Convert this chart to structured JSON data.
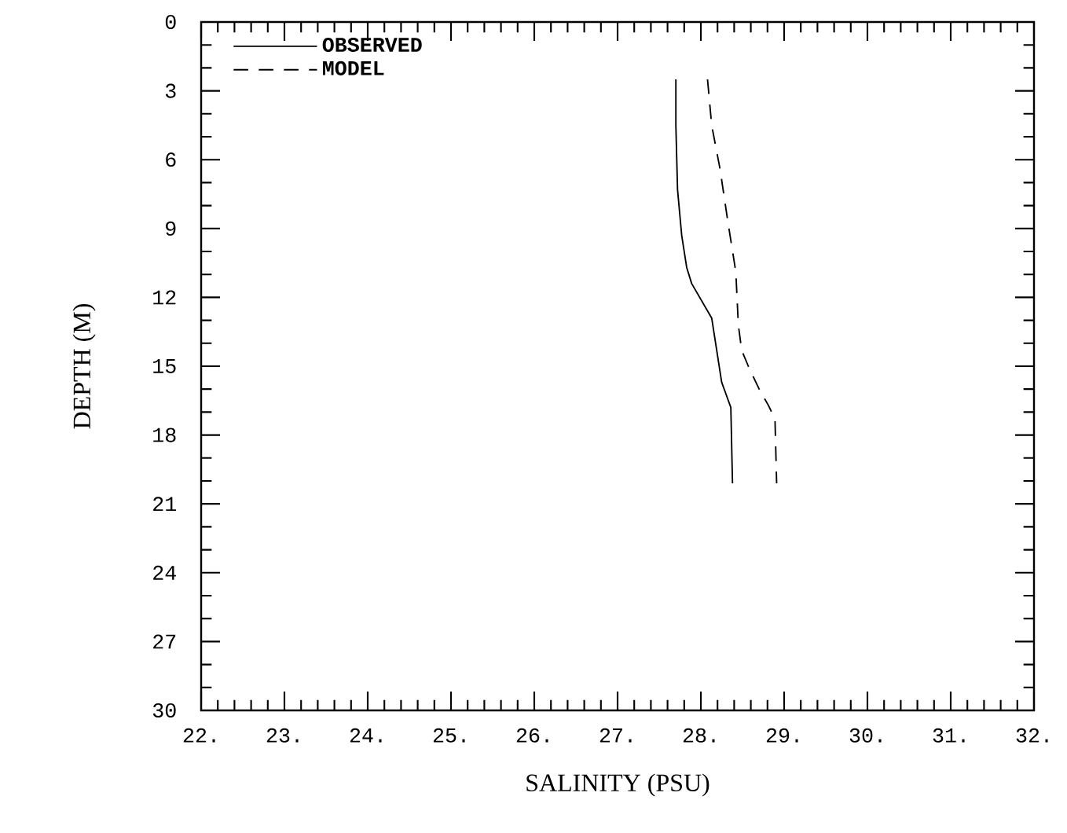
{
  "chart_data": {
    "type": "line",
    "xlabel": "SALINITY (PSU)",
    "ylabel": "DEPTH (M)",
    "xlim": [
      22,
      32
    ],
    "ylim": [
      30,
      0
    ],
    "xticks": [
      {
        "value": 22,
        "label": "22."
      },
      {
        "value": 23,
        "label": "23."
      },
      {
        "value": 24,
        "label": "24."
      },
      {
        "value": 25,
        "label": "25."
      },
      {
        "value": 26,
        "label": "26."
      },
      {
        "value": 27,
        "label": "27."
      },
      {
        "value": 28,
        "label": "28."
      },
      {
        "value": 29,
        "label": "29."
      },
      {
        "value": 30,
        "label": "30."
      },
      {
        "value": 31,
        "label": "31."
      },
      {
        "value": 32,
        "label": "32."
      }
    ],
    "yticks": [
      0,
      3,
      6,
      9,
      12,
      15,
      18,
      21,
      24,
      27,
      30
    ],
    "grid": false,
    "legend": "top left",
    "marker": "none",
    "series": [
      {
        "name": "OBSERVED",
        "color": "#000000",
        "line_style": "solid",
        "x": [
          27.7,
          27.7,
          27.72,
          27.77,
          27.83,
          27.89,
          28.13,
          28.25,
          28.3,
          28.36,
          28.38
        ],
        "values": [
          2.5,
          4.5,
          7.3,
          9.3,
          10.7,
          11.4,
          12.9,
          15.7,
          16.2,
          16.8,
          20.1
        ]
      },
      {
        "name": "MODEL",
        "color": "#000000",
        "line_style": "dashed",
        "x": [
          28.08,
          28.13,
          28.23,
          28.32,
          28.42,
          28.45,
          28.49,
          28.57,
          28.7,
          28.81,
          28.89,
          28.91
        ],
        "values": [
          2.5,
          4.5,
          6.4,
          8.6,
          10.9,
          13.2,
          14.3,
          15.0,
          16.0,
          16.7,
          17.3,
          20.1
        ]
      }
    ]
  }
}
